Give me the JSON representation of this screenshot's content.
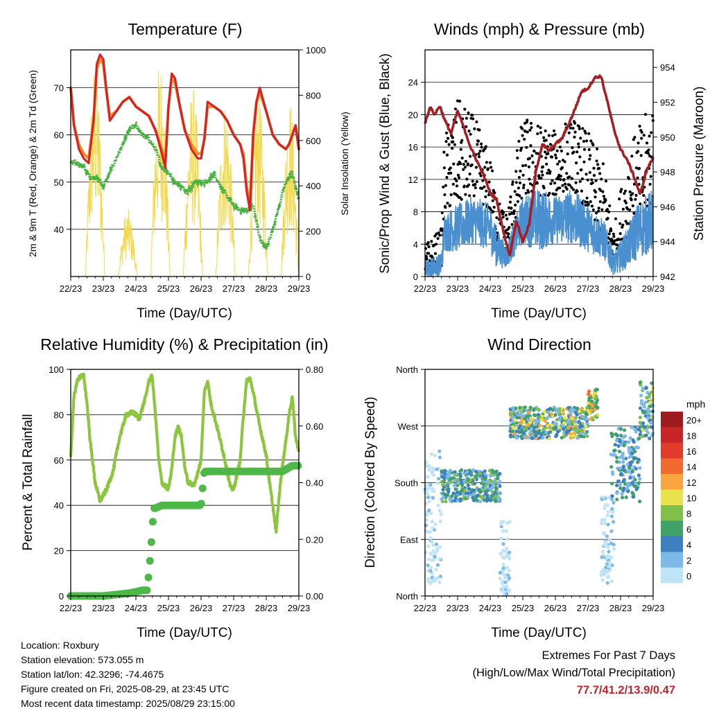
{
  "info": {
    "location": "Location: Roxbury",
    "elevation": "Station elevation: 573.055 m",
    "latlon": "Station lat/lon: 42.3296; -74.4675",
    "created": "Figure created on Fri, 2025-08-29, at 23:45 UTC",
    "recent": "Most recent data timestamp: 2025/08/29 23:15:00"
  },
  "extremes": {
    "line1": "Extremes For Past 7 Days",
    "line2": "(High/Low/Max Wind/Total Precipitation)",
    "values": "77.7/41.2/13.9/0.47",
    "color": "#c2232b"
  },
  "colors": {
    "temp2m": "#d42424",
    "temp9m": "#f08a2a",
    "dewpoint": "#45b03d",
    "solar": "#f5d84a",
    "gust": "#000000",
    "wind": "#4a90d0",
    "pressure": "#a31f24",
    "rh": "#8cc63f",
    "precip": "#4db848"
  },
  "chart_data": [
    {
      "type": "line",
      "title": "Temperature (F)",
      "xlabel": "Time (Day/UTC)",
      "ylabel": "2m & 9m T (Red, Orange) & 2m Td (Green)",
      "y2label": "Solar Insolation (Yellow)",
      "xticks": [
        "22/23",
        "23/23",
        "24/23",
        "25/23",
        "26/23",
        "27/23",
        "28/23",
        "29/23"
      ],
      "xlim": [
        0,
        7
      ],
      "ylim": [
        30,
        78
      ],
      "yticks": [
        40,
        50,
        60,
        70
      ],
      "y2lim": [
        0,
        1000
      ],
      "y2ticks": [
        0,
        200,
        400,
        600,
        800,
        1000
      ],
      "grid": true,
      "series": [
        {
          "name": "2m T",
          "color": "#d42424",
          "x": [
            0,
            0.1,
            0.25,
            0.4,
            0.55,
            0.7,
            0.8,
            0.9,
            1.0,
            1.1,
            1.2,
            1.4,
            1.6,
            1.8,
            2.0,
            2.2,
            2.4,
            2.6,
            2.8,
            2.9,
            3.0,
            3.1,
            3.2,
            3.35,
            3.5,
            3.7,
            3.9,
            4.0,
            4.1,
            4.2,
            4.4,
            4.6,
            4.8,
            5.0,
            5.2,
            5.3,
            5.4,
            5.5,
            5.6,
            5.7,
            5.8,
            6.0,
            6.2,
            6.4,
            6.6,
            6.7,
            6.8,
            6.9,
            7.0
          ],
          "y": [
            70,
            62,
            57,
            55,
            54,
            63,
            75,
            77,
            76,
            69,
            63,
            65,
            67,
            68,
            66,
            65,
            64,
            61,
            56,
            53,
            66,
            73,
            72,
            66,
            61,
            57,
            55,
            55,
            59,
            67,
            66,
            65,
            63,
            60,
            58,
            55,
            48,
            44,
            60,
            67,
            70,
            65,
            60,
            58,
            57,
            58,
            60,
            62,
            57
          ]
        },
        {
          "name": "9m T",
          "color": "#f08a2a",
          "x": [
            0,
            0.1,
            0.25,
            0.4,
            0.55,
            0.7,
            0.8,
            0.9,
            1.0,
            1.1,
            1.2,
            1.4,
            1.6,
            1.8,
            2.0,
            2.2,
            2.4,
            2.6,
            2.8,
            2.9,
            3.0,
            3.1,
            3.2,
            3.35,
            3.5,
            3.7,
            3.9,
            4.0,
            4.1,
            4.2,
            4.4,
            4.6,
            4.8,
            5.0,
            5.2,
            5.3,
            5.4,
            5.5,
            5.6,
            5.7,
            5.8,
            6.0,
            6.2,
            6.4,
            6.6,
            6.7,
            6.8,
            6.9,
            7.0
          ],
          "y": [
            70,
            62,
            58,
            56,
            55,
            63,
            74,
            76,
            75,
            69,
            64,
            65,
            67,
            68,
            66,
            65,
            64,
            61,
            57,
            54,
            66,
            72,
            71,
            66,
            61,
            58,
            56,
            56,
            59,
            66,
            66,
            65,
            63,
            60,
            58,
            56,
            49,
            45,
            60,
            67,
            69,
            65,
            60,
            58,
            57,
            58,
            60,
            62,
            57
          ]
        },
        {
          "name": "2m Td",
          "color": "#45b03d",
          "x": [
            0,
            0.2,
            0.4,
            0.6,
            0.8,
            1.0,
            1.2,
            1.4,
            1.6,
            1.8,
            2.0,
            2.2,
            2.4,
            2.6,
            2.8,
            3.0,
            3.2,
            3.4,
            3.6,
            3.8,
            4.0,
            4.2,
            4.4,
            4.6,
            4.8,
            5.0,
            5.2,
            5.4,
            5.6,
            5.8,
            6.0,
            6.2,
            6.4,
            6.6,
            6.8,
            7.0
          ],
          "y": [
            54,
            54,
            53,
            51,
            51,
            49,
            52,
            55,
            58,
            61,
            62,
            60,
            59,
            57,
            53,
            52,
            50,
            49,
            48,
            50,
            50,
            50,
            52,
            49,
            47,
            45,
            44,
            44,
            45,
            38,
            36,
            40,
            45,
            50,
            52,
            46
          ]
        }
      ],
      "solar": {
        "name": "Solar Insolation",
        "color": "#f5d84a",
        "days": [
          {
            "start": 0.45,
            "end": 1.05,
            "peak": 960
          },
          {
            "start": 1.45,
            "end": 2.05,
            "peak": 300
          },
          {
            "start": 2.45,
            "end": 3.05,
            "peak": 980
          },
          {
            "start": 3.45,
            "end": 4.05,
            "peak": 850
          },
          {
            "start": 4.45,
            "end": 5.05,
            "peak": 800
          },
          {
            "start": 5.45,
            "end": 6.05,
            "peak": 840
          },
          {
            "start": 6.45,
            "end": 7.0,
            "peak": 790
          }
        ]
      }
    },
    {
      "type": "scatter",
      "title": "Winds (mph) & Pressure (mb)",
      "xlabel": "Time (Day/UTC)",
      "ylabel": "Sonic/Prop Wind & Gust (Blue, Black)",
      "y2label": "Station Pressure (Maroon)",
      "xticks": [
        "22/23",
        "23/23",
        "24/23",
        "25/23",
        "26/23",
        "27/23",
        "28/23",
        "29/23"
      ],
      "xlim": [
        0,
        7
      ],
      "ylim": [
        0,
        28
      ],
      "yticks": [
        0,
        4,
        8,
        12,
        16,
        20,
        24
      ],
      "y2lim": [
        942,
        955
      ],
      "y2ticks": [
        942,
        944,
        946,
        948,
        950,
        952,
        954
      ],
      "grid": true,
      "wind_envelope": {
        "name": "Sonic/Prop Wind",
        "color": "#4a90d0",
        "x": [
          0,
          0.5,
          0.6,
          1.0,
          1.5,
          2.0,
          2.2,
          2.5,
          3.0,
          3.5,
          4.0,
          4.5,
          5.0,
          5.5,
          5.8,
          6.2,
          6.5,
          7.0
        ],
        "low": [
          0,
          0,
          3,
          3,
          4,
          3,
          1,
          1,
          4,
          3,
          4,
          4,
          3,
          2,
          0,
          1,
          2,
          3
        ],
        "high": [
          2,
          3,
          8,
          9,
          10,
          9,
          6,
          4,
          10,
          11,
          10,
          11,
          9,
          7,
          3,
          6,
          9,
          11
        ]
      },
      "gust_envelope": {
        "name": "Gust",
        "color": "#000000",
        "x": [
          0,
          0.5,
          0.6,
          1.0,
          1.5,
          2.0,
          2.2,
          2.5,
          3.0,
          3.5,
          4.0,
          4.5,
          5.0,
          5.5,
          5.8,
          6.2,
          6.5,
          7.0
        ],
        "low": [
          0,
          1,
          8,
          9,
          10,
          8,
          4,
          3,
          10,
          10,
          10,
          11,
          8,
          5,
          2,
          4,
          7,
          9
        ],
        "high": [
          4,
          6,
          18,
          22,
          20,
          15,
          10,
          8,
          20,
          19,
          18,
          20,
          18,
          14,
          6,
          16,
          18,
          22
        ]
      },
      "pressure": {
        "name": "Station Pressure",
        "color": "#a31f24",
        "x": [
          0,
          0.15,
          0.3,
          0.45,
          0.6,
          0.8,
          1.0,
          1.2,
          1.4,
          1.6,
          1.8,
          2.0,
          2.2,
          2.4,
          2.6,
          2.8,
          3.0,
          3.2,
          3.4,
          3.6,
          3.8,
          4.0,
          4.2,
          4.4,
          4.6,
          4.8,
          5.0,
          5.2,
          5.4,
          5.6,
          5.8,
          6.0,
          6.2,
          6.4,
          6.6,
          6.8,
          7.0
        ],
        "y": [
          950.8,
          951.7,
          951.3,
          951.8,
          951.0,
          950.2,
          951.5,
          950.5,
          949.4,
          948.6,
          947.8,
          946.8,
          946.4,
          944.6,
          943.2,
          945.2,
          944.0,
          945.0,
          948.0,
          949.6,
          949.2,
          949.6,
          949.9,
          950.7,
          951.6,
          952.6,
          952.8,
          953.4,
          953.5,
          952.0,
          950.4,
          949.3,
          948.7,
          947.8,
          946.7,
          948.1,
          948.8
        ]
      }
    },
    {
      "type": "line",
      "title": "Relative Humidity (%) & Precipitation (in)",
      "xlabel": "Time (Day/UTC)",
      "ylabel": "Percent & Total Rainfall",
      "xticks": [
        "22/23",
        "23/23",
        "24/23",
        "25/23",
        "26/23",
        "27/23",
        "28/23",
        "29/23"
      ],
      "xlim": [
        0,
        7
      ],
      "ylim": [
        0,
        100
      ],
      "yticks": [
        0,
        20,
        40,
        60,
        80,
        100
      ],
      "y2lim": [
        0,
        0.8
      ],
      "y2ticks": [
        "0.00",
        "0.20",
        "0.40",
        "0.60",
        "0.80"
      ],
      "grid": true,
      "series": [
        {
          "name": "Relative Humidity",
          "color": "#8cc63f",
          "x": [
            0,
            0.1,
            0.2,
            0.3,
            0.4,
            0.5,
            0.6,
            0.75,
            0.9,
            1.1,
            1.3,
            1.5,
            1.7,
            1.9,
            2.0,
            2.1,
            2.2,
            2.3,
            2.4,
            2.5,
            2.6,
            2.7,
            2.8,
            3.0,
            3.1,
            3.2,
            3.3,
            3.4,
            3.5,
            3.6,
            3.8,
            4.0,
            4.1,
            4.2,
            4.3,
            4.5,
            4.7,
            4.9,
            5.0,
            5.2,
            5.3,
            5.4,
            5.5,
            5.6,
            5.7,
            5.8,
            6.0,
            6.1,
            6.2,
            6.3,
            6.4,
            6.5,
            6.6,
            6.7,
            6.8,
            6.9,
            7.0
          ],
          "y": [
            62,
            88,
            95,
            97,
            97,
            85,
            68,
            50,
            42,
            47,
            55,
            70,
            80,
            81,
            80,
            78,
            83,
            88,
            95,
            97,
            80,
            60,
            50,
            47,
            56,
            70,
            75,
            70,
            57,
            50,
            49,
            60,
            90,
            95,
            85,
            74,
            62,
            48,
            47,
            60,
            80,
            95,
            96,
            90,
            82,
            75,
            62,
            50,
            40,
            28,
            45,
            58,
            68,
            80,
            88,
            70,
            64
          ]
        },
        {
          "name": "Total Precipitation",
          "color": "#4db848",
          "x": [
            0,
            1.0,
            1.8,
            2.2,
            2.35,
            2.45,
            2.55,
            2.6,
            2.8,
            3.0,
            4.0,
            4.1,
            5.0,
            5.5,
            6.0,
            6.5,
            6.8,
            7.0
          ],
          "y": [
            0.0,
            0.0,
            0.01,
            0.02,
            0.02,
            0.15,
            0.31,
            0.31,
            0.32,
            0.32,
            0.32,
            0.44,
            0.44,
            0.44,
            0.44,
            0.44,
            0.46,
            0.46
          ]
        }
      ]
    },
    {
      "type": "scatter",
      "title": "Wind Direction",
      "xlabel": "Time (Day/UTC)",
      "ylabel": "Direction (Colored By Speed)",
      "xticks": [
        "22/23",
        "23/23",
        "24/23",
        "25/23",
        "26/23",
        "27/23",
        "28/23",
        "29/23"
      ],
      "xlim": [
        0,
        7
      ],
      "ylim": [
        0,
        360
      ],
      "ytick_values": [
        0,
        90,
        180,
        270,
        360
      ],
      "ytick_labels": [
        "North",
        "East",
        "South",
        "West",
        "North"
      ],
      "grid": true,
      "clusters": [
        {
          "x0": 0.0,
          "x1": 0.5,
          "dir0": 20,
          "dir1": 230,
          "speed": [
            0,
            3
          ]
        },
        {
          "x0": 0.5,
          "x1": 2.3,
          "dir0": 150,
          "dir1": 200,
          "speed": [
            3,
            10
          ]
        },
        {
          "x0": 2.3,
          "x1": 2.6,
          "dir0": 0,
          "dir1": 120,
          "speed": [
            0,
            3
          ]
        },
        {
          "x0": 2.6,
          "x1": 5.0,
          "dir0": 250,
          "dir1": 300,
          "speed": [
            3,
            14
          ]
        },
        {
          "x0": 5.0,
          "x1": 5.3,
          "dir0": 280,
          "dir1": 330,
          "speed": [
            6,
            15
          ]
        },
        {
          "x0": 5.4,
          "x1": 5.8,
          "dir0": 20,
          "dir1": 160,
          "speed": [
            0,
            4
          ]
        },
        {
          "x0": 5.7,
          "x1": 6.6,
          "dir0": 150,
          "dir1": 270,
          "speed": [
            2,
            8
          ]
        },
        {
          "x0": 6.6,
          "x1": 7.0,
          "dir0": 250,
          "dir1": 340,
          "speed": [
            3,
            11
          ]
        }
      ],
      "colorbar": {
        "title": "mph",
        "labels": [
          "20+",
          "18",
          "16",
          "14",
          "12",
          "10",
          "8",
          "6",
          "4",
          "2",
          "0"
        ],
        "colors": [
          "#9b1b1e",
          "#c8252a",
          "#e33b2b",
          "#f26a2f",
          "#f9a43f",
          "#e8e24c",
          "#7fbf4a",
          "#41a269",
          "#3d7fbf",
          "#7cb9e8",
          "#bfe3f7"
        ]
      }
    }
  ]
}
